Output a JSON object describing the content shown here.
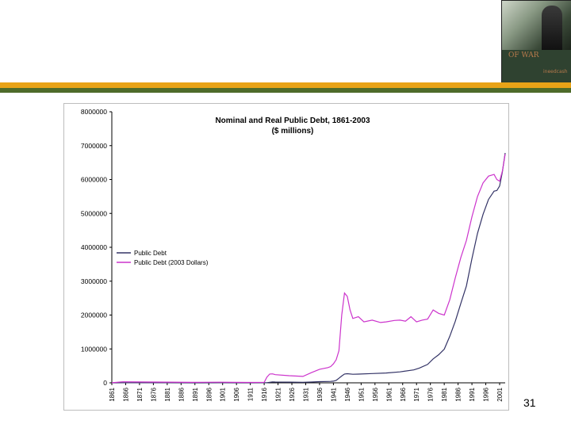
{
  "slide": {
    "page_number": "31",
    "colors": {
      "band_top": "#E8A317",
      "band_bottom": "#4E6B2A"
    }
  },
  "thumbnail": {
    "title": "OF WAR",
    "subtitle": "ineedcash"
  },
  "chart_data": {
    "type": "line",
    "title": "Nominal and Real Public Debt, 1861-2003",
    "subtitle": "($ millions)",
    "xlabel": "",
    "ylabel": "",
    "ylim": [
      0,
      8000000
    ],
    "yticks": [
      0,
      1000000,
      2000000,
      3000000,
      4000000,
      5000000,
      6000000,
      7000000,
      8000000
    ],
    "xticks": [
      "1861",
      "1866",
      "1871",
      "1876",
      "1881",
      "1886",
      "1891",
      "1896",
      "1901",
      "1906",
      "1911",
      "1916",
      "1921",
      "1926",
      "1931",
      "1936",
      "1941",
      "1946",
      "1951",
      "1956",
      "1961",
      "1966",
      "1971",
      "1976",
      "1981",
      "1986",
      "1991",
      "1996",
      "2001"
    ],
    "grid": false,
    "legend_position": "left-middle",
    "series": [
      {
        "name": "Public Debt",
        "color": "#333366",
        "points": [
          [
            1861,
            65
          ],
          [
            1865,
            2700
          ],
          [
            1870,
            2400
          ],
          [
            1880,
            2000
          ],
          [
            1890,
            1100
          ],
          [
            1900,
            1300
          ],
          [
            1910,
            1100
          ],
          [
            1916,
            1200
          ],
          [
            1917,
            3000
          ],
          [
            1919,
            25000
          ],
          [
            1920,
            24000
          ],
          [
            1925,
            20500
          ],
          [
            1930,
            16000
          ],
          [
            1933,
            22500
          ],
          [
            1936,
            34000
          ],
          [
            1939,
            40400
          ],
          [
            1940,
            43000
          ],
          [
            1941,
            49000
          ],
          [
            1942,
            72400
          ],
          [
            1943,
            136700
          ],
          [
            1944,
            201000
          ],
          [
            1945,
            258700
          ],
          [
            1946,
            269400
          ],
          [
            1948,
            252300
          ],
          [
            1950,
            257400
          ],
          [
            1955,
            274400
          ],
          [
            1960,
            290500
          ],
          [
            1965,
            322300
          ],
          [
            1970,
            380900
          ],
          [
            1972,
            435900
          ],
          [
            1975,
            541900
          ],
          [
            1977,
            706400
          ],
          [
            1979,
            829500
          ],
          [
            1981,
            994800
          ],
          [
            1983,
            1371700
          ],
          [
            1985,
            1817400
          ],
          [
            1987,
            2346000
          ],
          [
            1989,
            2857400
          ],
          [
            1991,
            3665300
          ],
          [
            1993,
            4411500
          ],
          [
            1995,
            4974000
          ],
          [
            1997,
            5413100
          ],
          [
            1999,
            5656300
          ],
          [
            2000,
            5674200
          ],
          [
            2001,
            5807500
          ],
          [
            2002,
            6228200
          ],
          [
            2003,
            6783200
          ]
        ]
      },
      {
        "name": "Public Debt (2003 Dollars)",
        "color": "#CC33CC",
        "points": [
          [
            1861,
            1200
          ],
          [
            1865,
            30000
          ],
          [
            1870,
            25000
          ],
          [
            1880,
            22000
          ],
          [
            1890,
            14000
          ],
          [
            1900,
            18000
          ],
          [
            1910,
            12000
          ],
          [
            1916,
            15000
          ],
          [
            1917,
            170000
          ],
          [
            1918,
            260000
          ],
          [
            1919,
            265000
          ],
          [
            1920,
            240000
          ],
          [
            1925,
            210000
          ],
          [
            1930,
            190000
          ],
          [
            1933,
            300000
          ],
          [
            1936,
            400000
          ],
          [
            1939,
            450000
          ],
          [
            1940,
            480000
          ],
          [
            1941,
            560000
          ],
          [
            1942,
            680000
          ],
          [
            1943,
            950000
          ],
          [
            1944,
            2000000
          ],
          [
            1945,
            2650000
          ],
          [
            1946,
            2550000
          ],
          [
            1947,
            2150000
          ],
          [
            1948,
            1900000
          ],
          [
            1950,
            1950000
          ],
          [
            1952,
            1800000
          ],
          [
            1955,
            1850000
          ],
          [
            1958,
            1780000
          ],
          [
            1960,
            1800000
          ],
          [
            1963,
            1840000
          ],
          [
            1965,
            1850000
          ],
          [
            1967,
            1820000
          ],
          [
            1969,
            1950000
          ],
          [
            1971,
            1800000
          ],
          [
            1973,
            1850000
          ],
          [
            1975,
            1880000
          ],
          [
            1977,
            2150000
          ],
          [
            1979,
            2050000
          ],
          [
            1981,
            2000000
          ],
          [
            1983,
            2450000
          ],
          [
            1985,
            3100000
          ],
          [
            1987,
            3700000
          ],
          [
            1989,
            4200000
          ],
          [
            1991,
            4900000
          ],
          [
            1993,
            5500000
          ],
          [
            1995,
            5900000
          ],
          [
            1997,
            6100000
          ],
          [
            1999,
            6150000
          ],
          [
            2000,
            6000000
          ],
          [
            2001,
            5950000
          ],
          [
            2002,
            6250000
          ],
          [
            2003,
            6750000
          ]
        ]
      }
    ]
  }
}
